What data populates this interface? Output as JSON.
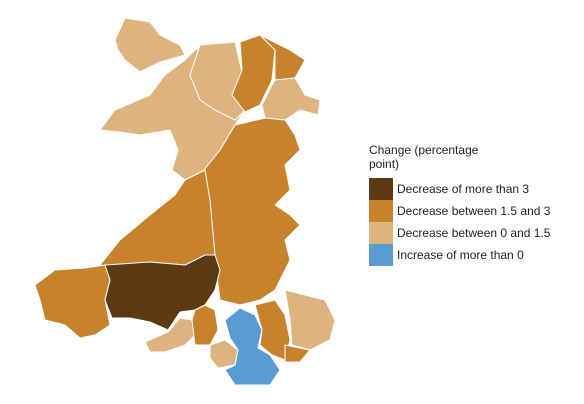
{
  "legend": {
    "title": "Change (percentage point)",
    "items": [
      {
        "label": "Decrease of more than 3",
        "color": "#5c3b14"
      },
      {
        "label": "Decrease between 1.5 and 3",
        "color": "#c8822c"
      },
      {
        "label": "Decrease between 0 and 1.5",
        "color": "#ddb47f"
      },
      {
        "label": "Increase of more than 0",
        "color": "#5b9bd5"
      }
    ]
  }
}
